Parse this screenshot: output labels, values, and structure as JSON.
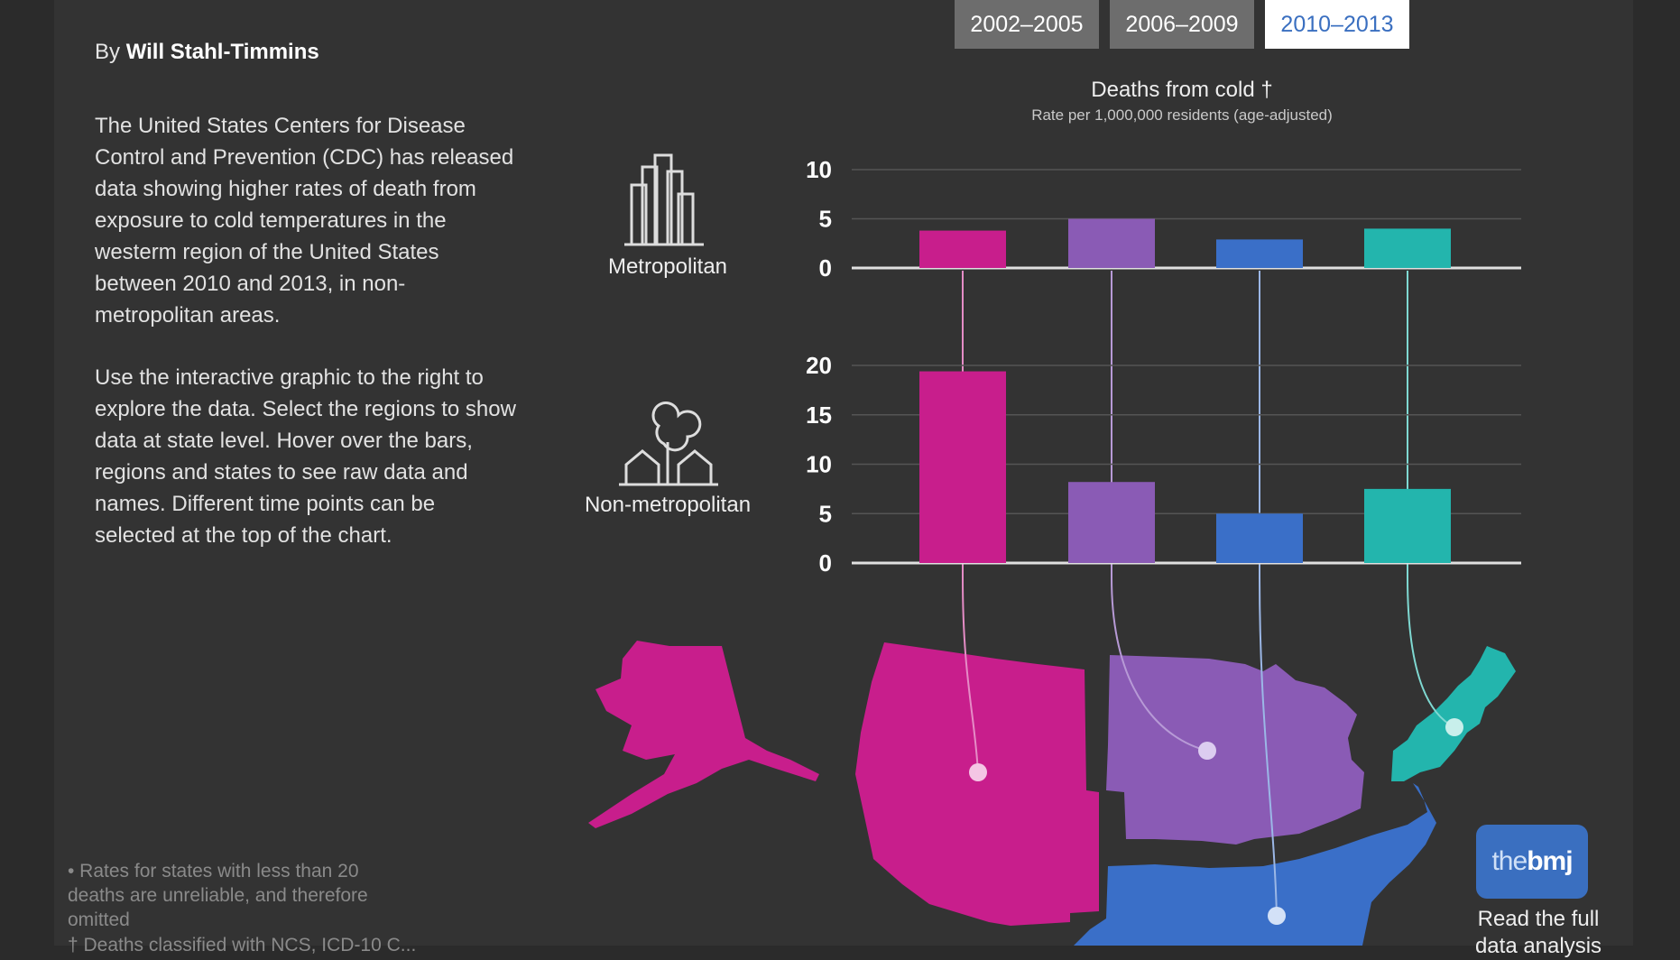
{
  "byline": {
    "prefix": "By",
    "author": "Will Stahl-Timmins"
  },
  "intro": {
    "paragraph1": "The United States Centers for Disease Control and Prevention (CDC) has released data showing higher rates of death from exposure to cold temperatures in the westerm region of the United States between 2010 and 2013, in non-metropolitan areas.",
    "paragraph2": "Use the interactive graphic to the right to explore the data. Select the regions to show data at state level. Hover over the bars, regions and states to see raw data and names. Different time points can be selected at the top of the chart."
  },
  "tabs": [
    {
      "label": "2002–2005",
      "active": false
    },
    {
      "label": "2006–2009",
      "active": false
    },
    {
      "label": "2010–2013",
      "active": true
    }
  ],
  "chart_title": "Deaths from cold †",
  "chart_subtitle": "Rate per 1,000,000 residents (age-adjusted)",
  "labels": {
    "metro": "Metropolitan",
    "nonmetro": "Non-metropolitan"
  },
  "footnote": "• Rates for states with less than 20 deaths are unreliable, and therefore omitted",
  "footnote2": "† Deaths classified with NCS, ICD-10 C...",
  "logo": {
    "the": "the",
    "bmj": "bmj"
  },
  "read_more": "Read the full data analysis",
  "colors": {
    "west": "#c81e8c",
    "midwest": "#8a5bb5",
    "south": "#3a6fc8",
    "northeast": "#23b5ad"
  },
  "chart_data": [
    {
      "type": "bar",
      "panel": "Metropolitan",
      "categories": [
        "",
        "",
        "",
        ""
      ],
      "values": [
        3.8,
        5.0,
        2.9,
        4.0
      ],
      "ylim": [
        0,
        10
      ],
      "yticks": [
        0,
        5,
        10
      ],
      "colors": [
        "#c81e8c",
        "#8a5bb5",
        "#3a6fc8",
        "#23b5ad"
      ],
      "grid": true
    },
    {
      "type": "bar",
      "panel": "Non-metropolitan",
      "categories": [
        "",
        "",
        "",
        ""
      ],
      "values": [
        19.4,
        8.2,
        5.0,
        7.5
      ],
      "ylim": [
        0,
        20
      ],
      "yticks": [
        0,
        5,
        10,
        15,
        20
      ],
      "colors": [
        "#c81e8c",
        "#8a5bb5",
        "#3a6fc8",
        "#23b5ad"
      ],
      "grid": true
    }
  ]
}
